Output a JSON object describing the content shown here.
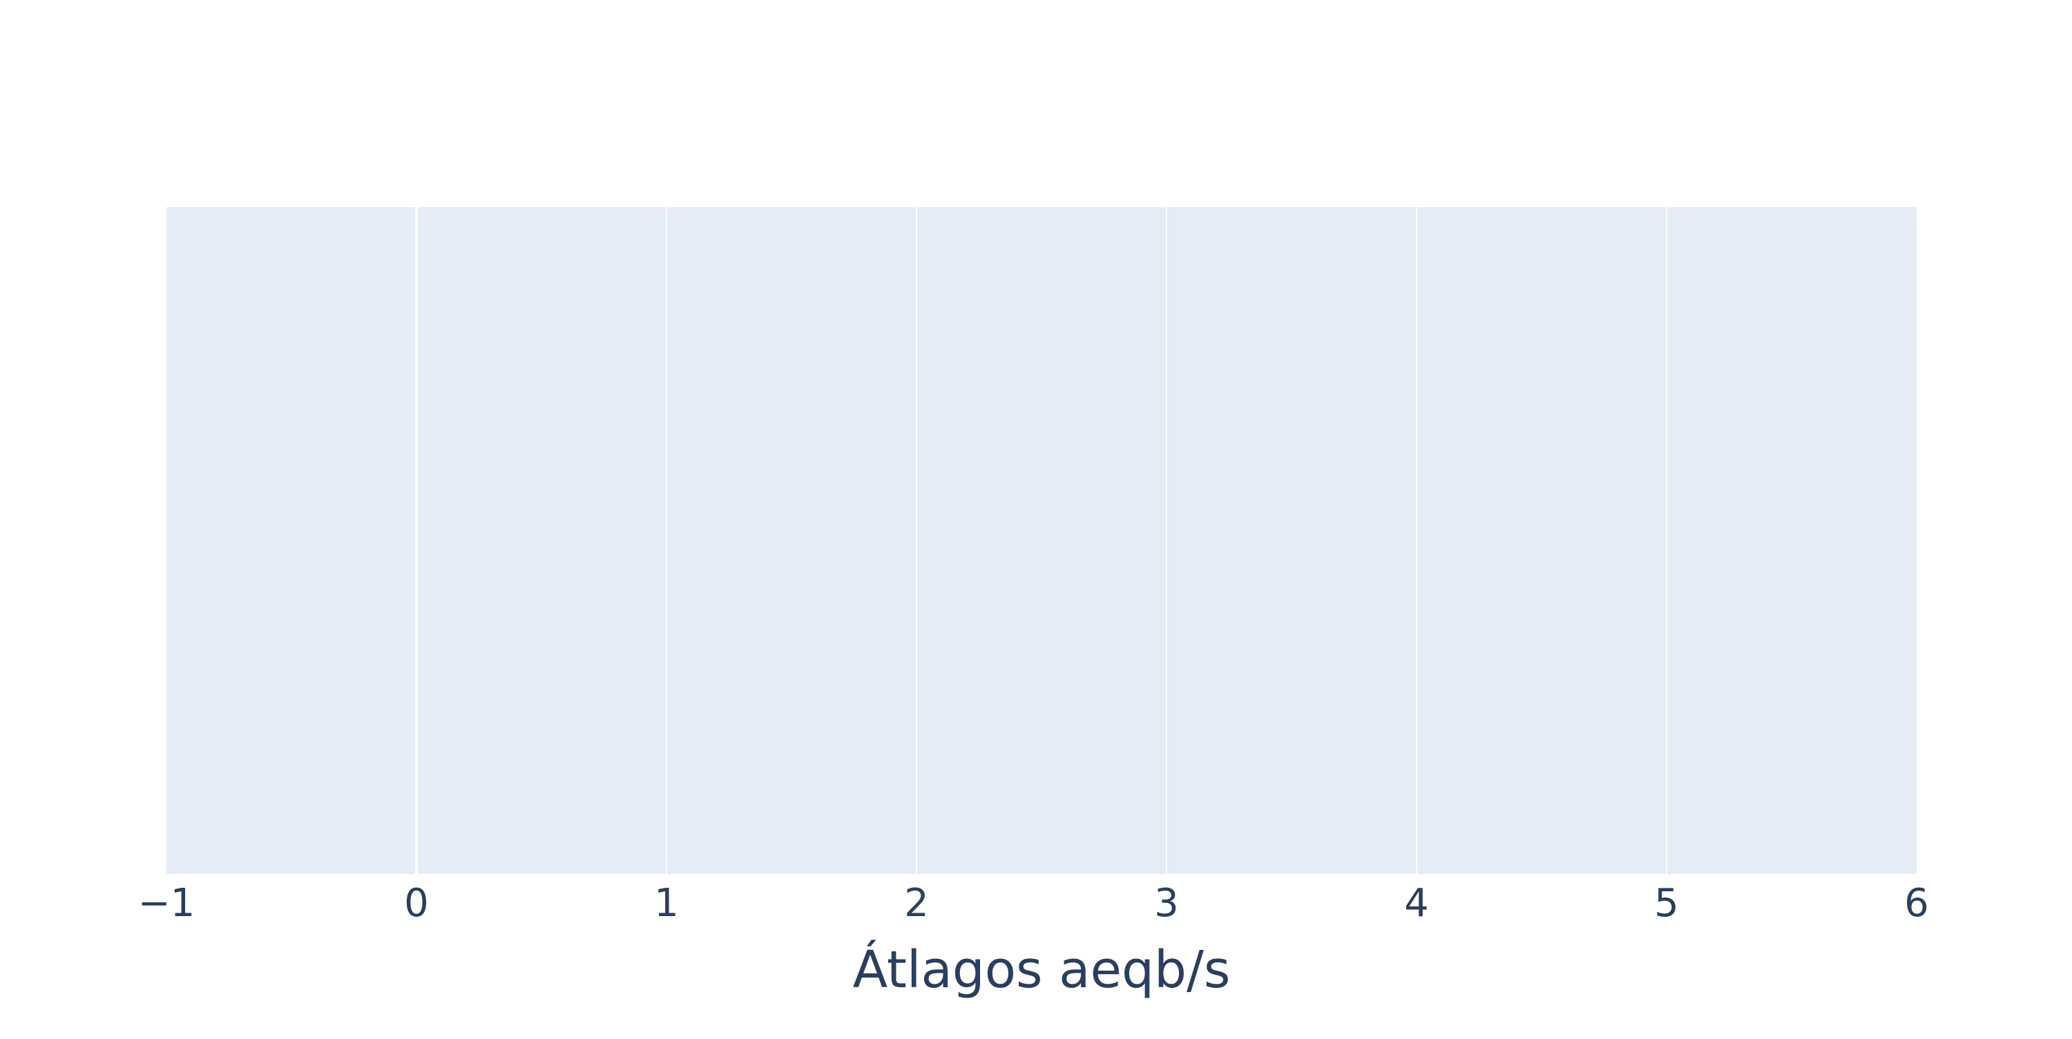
{
  "chart_data": {
    "type": "scatter",
    "title": "",
    "xlabel": "Átlagos aeqb/s",
    "ylabel": "",
    "xlim": [
      -1,
      6
    ],
    "x_ticks": [
      -1,
      0,
      1,
      2,
      3,
      4,
      5,
      6
    ],
    "x_tick_labels": [
      "−1",
      "0",
      "1",
      "2",
      "3",
      "4",
      "5",
      "6"
    ],
    "series": [],
    "grid": true,
    "legend": "none"
  },
  "colors": {
    "plot_background": "#e5ecf6",
    "grid": "#ffffff",
    "text": "#2a3f5f"
  }
}
